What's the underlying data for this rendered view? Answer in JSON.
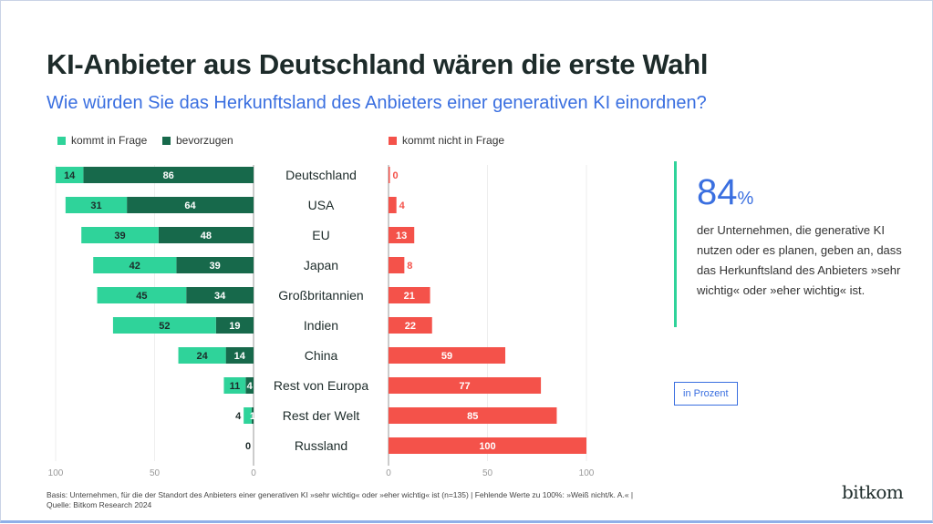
{
  "title": "KI-Anbieter aus Deutschland wären die erste Wahl",
  "subtitle": "Wie würden Sie das Herkunftsland des Anbieters einer generativen KI einordnen?",
  "colors": {
    "kommt_in_frage": "#2fd39a",
    "bevorzugen": "#17694b",
    "kommt_nicht_in_frage": "#f4524a"
  },
  "chart_data": {
    "type": "bar",
    "categories": [
      "Deutschland",
      "USA",
      "EU",
      "Japan",
      "Großbritannien",
      "Indien",
      "China",
      "Rest von Europa",
      "Rest der Welt",
      "Russland"
    ],
    "series": [
      {
        "name": "kommt in Frage",
        "values": [
          14,
          31,
          39,
          42,
          45,
          52,
          24,
          11,
          4,
          0
        ]
      },
      {
        "name": "bevorzugen",
        "values": [
          86,
          64,
          48,
          39,
          34,
          19,
          14,
          4,
          1,
          0
        ]
      },
      {
        "name": "kommt nicht in Frage",
        "values": [
          0,
          4,
          13,
          8,
          21,
          22,
          59,
          77,
          85,
          100
        ]
      }
    ],
    "left_ticks": [
      "100",
      "50",
      "0"
    ],
    "right_ticks": [
      "0",
      "50",
      "100"
    ],
    "xlim": [
      0,
      100
    ],
    "legend_placement": "top"
  },
  "callout": {
    "value": "84",
    "unit": "%",
    "text": "der Unternehmen, die generative KI nutzen oder es planen, geben an, dass das Herkunftsland des Anbieters »sehr wichtig« oder »eher wichtig« ist."
  },
  "unit_label": "in Prozent",
  "footnote": [
    "Basis: Unternehmen, für die der Standort des Anbieters einer generativen KI »sehr wichtig« oder »eher wichtig« ist (n=135) | Fehlende Werte zu 100%: »Weiß nicht/k. A.« |",
    "Quelle: Bitkom Research 2024"
  ],
  "logo": "bitkom"
}
